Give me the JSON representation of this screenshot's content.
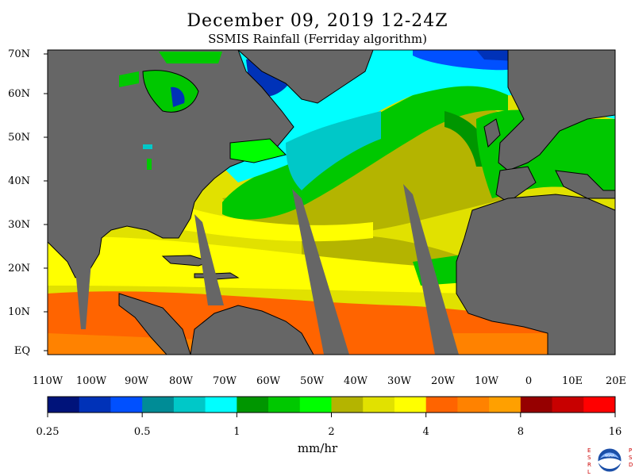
{
  "title": "December 09, 2019 12-24Z",
  "subtitle": "SSMIS Rainfall (Ferriday algorithm)",
  "lat_labels": [
    "70N",
    "60N",
    "50N",
    "40N",
    "30N",
    "20N",
    "10N",
    "EQ"
  ],
  "lon_labels": [
    "110W",
    "100W",
    "90W",
    "80W",
    "70W",
    "60W",
    "50W",
    "40W",
    "30W",
    "20W",
    "10W",
    "0",
    "10E",
    "20E"
  ],
  "colorbar": {
    "unit": "mm/hr",
    "tick_labels": [
      "0.25",
      "0.5",
      "1",
      "2",
      "4",
      "8",
      "16"
    ],
    "colors": [
      "#00137a",
      "#0032b8",
      "#0050ff",
      "#008c96",
      "#00c8c8",
      "#00ffff",
      "#009600",
      "#00c800",
      "#00ff00",
      "#b4b400",
      "#e1e100",
      "#ffff00",
      "#ff6400",
      "#ff8200",
      "#ffa000",
      "#960000",
      "#c80000",
      "#ff0000"
    ]
  },
  "colors": {
    "land": "#666666",
    "missing_swath": "#666666",
    "coast": "#000000"
  },
  "logo": {
    "left_letters": "ESRL",
    "right_letters": "PSD",
    "name": "NOAA"
  }
}
